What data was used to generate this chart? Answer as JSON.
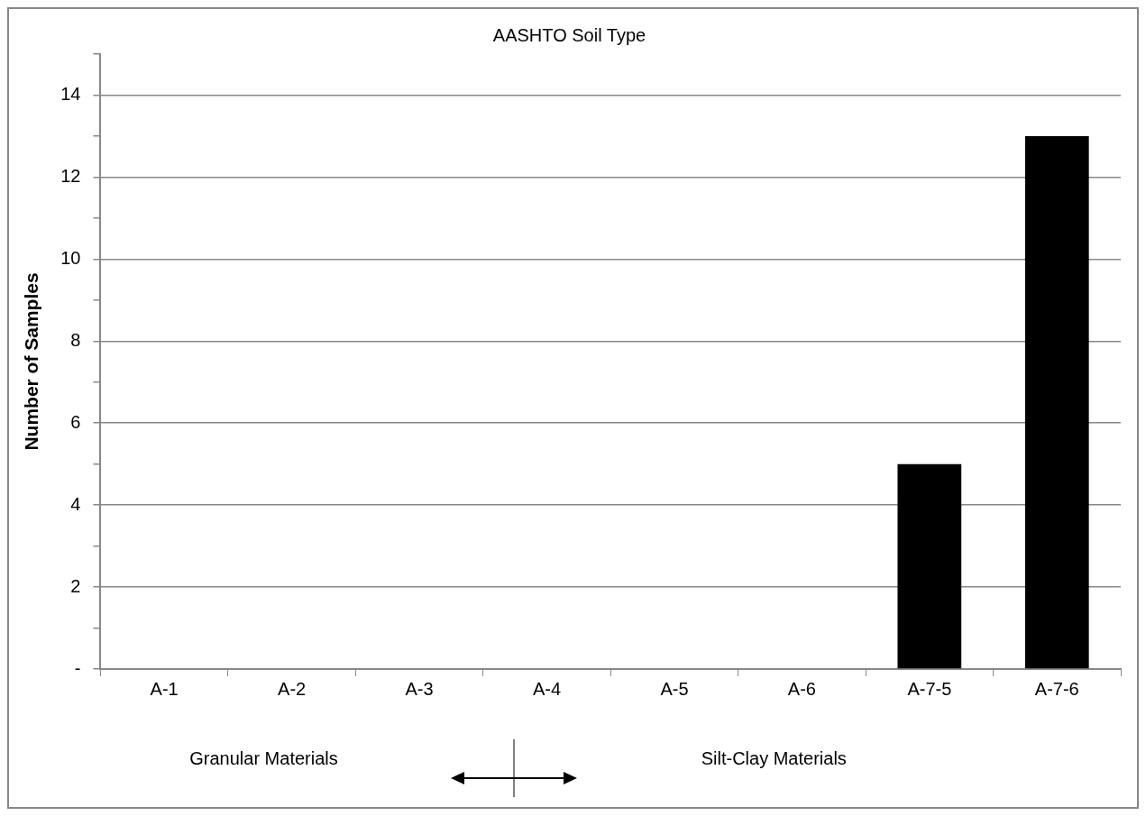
{
  "chart_data": {
    "type": "bar",
    "title": "AASHTO Soil Type",
    "ylabel": "Number of Samples",
    "categories": [
      "A-1",
      "A-2",
      "A-3",
      "A-4",
      "A-5",
      "A-6",
      "A-7-5",
      "A-7-6"
    ],
    "values": [
      0,
      0,
      0,
      0,
      0,
      0,
      5,
      13
    ],
    "color": "#000000",
    "ylim": [
      0,
      15
    ],
    "yticks": [
      {
        "value": 0,
        "label": "-"
      },
      {
        "value": 1,
        "label": null
      },
      2,
      {
        "value": 3,
        "label": null
      },
      4,
      {
        "value": 5,
        "label": null
      },
      6,
      {
        "value": 7,
        "label": null
      },
      8,
      {
        "value": 9,
        "label": null
      },
      10,
      {
        "value": 11,
        "label": null
      },
      12,
      {
        "value": 13,
        "label": null
      },
      14,
      {
        "value": 15,
        "label": null
      }
    ],
    "grid": "y",
    "legend": false,
    "annotations": [
      "Granular Materials",
      "Silt-Clay Materials"
    ]
  }
}
